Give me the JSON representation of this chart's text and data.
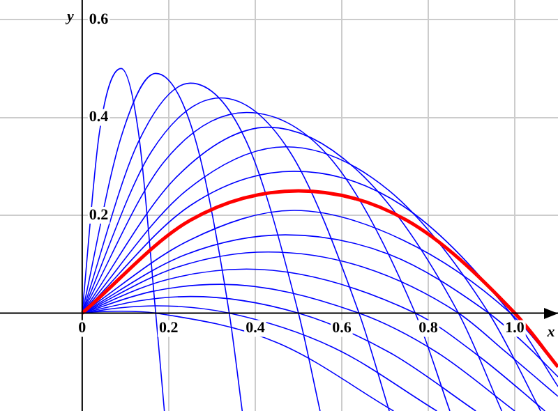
{
  "chart_data": {
    "type": "line",
    "xlabel": "x",
    "ylabel": "y",
    "xlim": [
      -0.19,
      1.1
    ],
    "ylim": [
      -0.2,
      0.64
    ],
    "xticks": [
      0,
      0.2,
      0.4,
      0.6,
      0.8,
      {
        "value": 1,
        "label": "1.0"
      }
    ],
    "yticks": [
      0.2,
      0.4,
      0.6
    ],
    "grid": true,
    "legend": false,
    "marker": "none",
    "line_style": "solid",
    "series": [
      {
        "color": "#0000ff",
        "x": [
          0,
          0.04,
          0.09,
          0.17,
          0.45,
          0.72
        ],
        "values": [
          0,
          0.003,
          0.004,
          0,
          -0.06,
          -0.2
        ]
      },
      {
        "color": "#0000ff",
        "x": [
          0,
          0.09,
          0.17,
          0.34,
          0.58,
          0.82
        ],
        "values": [
          0,
          0.011,
          0.015,
          0,
          -0.07,
          -0.2
        ]
      },
      {
        "color": "#0000ff",
        "x": [
          0,
          0.13,
          0.25,
          0.5,
          0.71,
          0.91
        ],
        "values": [
          0,
          0.025,
          0.034,
          0,
          -0.08,
          -0.2
        ]
      },
      {
        "color": "#0000ff",
        "x": [
          0,
          0.16,
          0.32,
          0.64,
          0.82,
          1.0
        ],
        "values": [
          0,
          0.044,
          0.059,
          0,
          -0.08,
          -0.2
        ]
      },
      {
        "color": "#0000ff",
        "x": [
          0,
          0.19,
          0.38,
          0.77,
          0.92,
          1.07
        ],
        "values": [
          0,
          0.067,
          0.09,
          0,
          -0.09,
          -0.2
        ]
      },
      {
        "color": "#0000ff",
        "x": [
          0,
          0.22,
          0.43,
          0.65,
          0.87,
          0.98,
          1.1
        ],
        "values": [
          0,
          0.094,
          0.125,
          0.094,
          0,
          -0.08,
          -0.17
        ]
      },
      {
        "color": "#0000ff",
        "x": [
          0,
          0.24,
          0.47,
          0.71,
          0.94,
          1.02,
          1.1
        ],
        "values": [
          0,
          0.12,
          0.16,
          0.12,
          0,
          -0.06,
          -0.13
        ]
      },
      {
        "color": "#0000ff",
        "x": [
          0,
          0.25,
          0.49,
          0.74,
          0.99,
          1.1
        ],
        "values": [
          0,
          0.15,
          0.21,
          0.15,
          0,
          -0.11
        ]
      },
      {
        "color": "#0000ff",
        "x": [
          0,
          0.25,
          0.49,
          0.74,
          0.99,
          1.1
        ],
        "values": [
          0,
          0.22,
          0.29,
          0.22,
          0,
          -0.15
        ]
      },
      {
        "color": "#0000ff",
        "x": [
          0,
          0.24,
          0.47,
          0.71,
          0.94,
          1.06
        ],
        "values": [
          0,
          0.25,
          0.34,
          0.25,
          0,
          -0.2
        ]
      },
      {
        "color": "#0000ff",
        "x": [
          0,
          0.22,
          0.43,
          0.65,
          0.87,
          0.97
        ],
        "values": [
          0,
          0.28,
          0.38,
          0.28,
          0,
          -0.2
        ]
      },
      {
        "color": "#0000ff",
        "x": [
          0,
          0.19,
          0.38,
          0.58,
          0.77,
          0.85
        ],
        "values": [
          0,
          0.31,
          0.41,
          0.31,
          0,
          -0.2
        ]
      },
      {
        "color": "#0000ff",
        "x": [
          0,
          0.16,
          0.32,
          0.48,
          0.64,
          0.71
        ],
        "values": [
          0,
          0.33,
          0.44,
          0.33,
          0,
          -0.2
        ]
      },
      {
        "color": "#0000ff",
        "x": [
          0,
          0.13,
          0.25,
          0.38,
          0.5,
          0.55
        ],
        "values": [
          0,
          0.35,
          0.47,
          0.35,
          0,
          -0.2
        ]
      },
      {
        "color": "#0000ff",
        "x": [
          0,
          0.09,
          0.17,
          0.26,
          0.34,
          0.37
        ],
        "values": [
          0,
          0.36,
          0.49,
          0.36,
          0,
          -0.2
        ]
      },
      {
        "color": "#0000ff",
        "x": [
          0,
          0.04,
          0.09,
          0.13,
          0.17,
          0.19
        ],
        "values": [
          0,
          0.37,
          0.5,
          0.37,
          0,
          -0.2
        ]
      },
      {
        "color": "#ff0000",
        "x": [
          0,
          0.25,
          0.5,
          0.75,
          1,
          1.1
        ],
        "values": [
          0,
          0.19,
          0.25,
          0.19,
          0,
          -0.11
        ]
      }
    ]
  }
}
